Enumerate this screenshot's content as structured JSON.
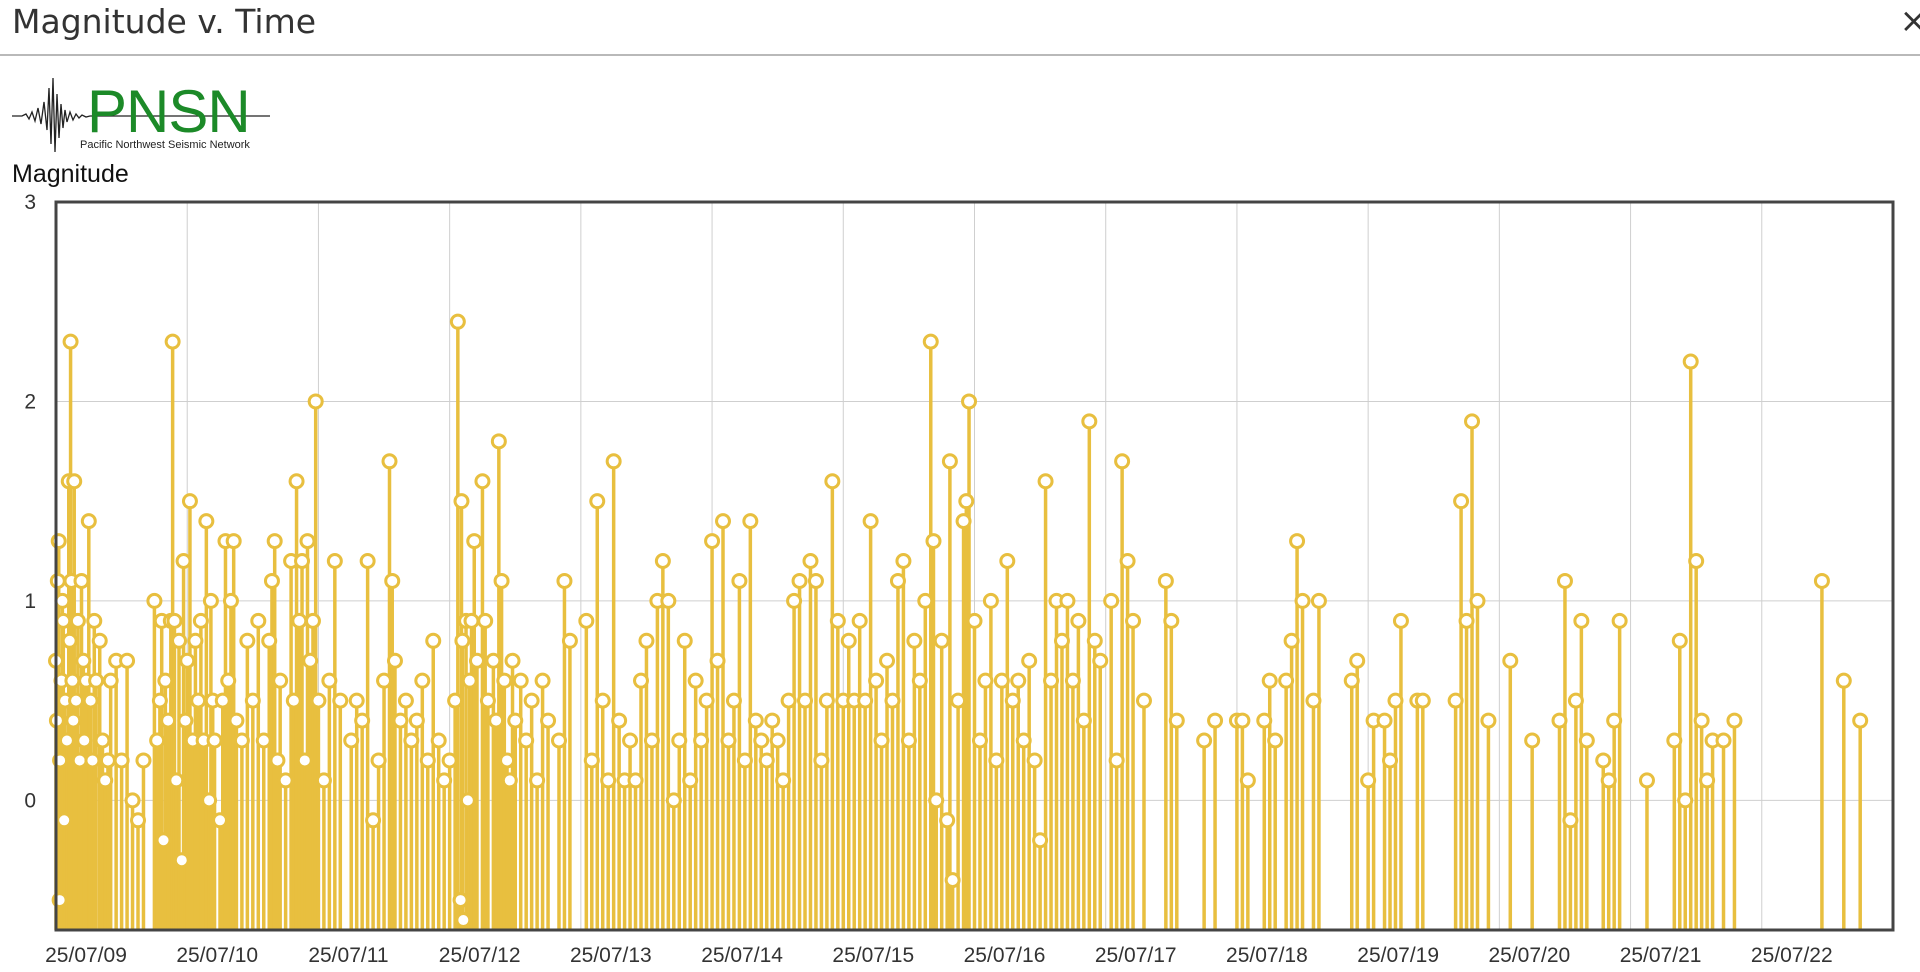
{
  "window": {
    "title": "Magnitude v. Time",
    "close_glyph": "×"
  },
  "logo": {
    "wordmark": "PNSN",
    "subtitle": "Pacific Northwest Seismic Network"
  },
  "colors": {
    "accent": "#e8bf3f",
    "marker_fill": "#ffffff",
    "grid": "#cfcfcf",
    "axis": "#444444"
  },
  "chart_data": {
    "type": "scatter",
    "style": "stem",
    "title": "Magnitude v. Time",
    "ylabel": "Magnitude",
    "xlabel": "",
    "ylim": [
      -0.65,
      3
    ],
    "xlim": [
      "25/07/09 00:00",
      "25/07/23 00:00"
    ],
    "yticks": [
      0,
      1,
      2,
      3
    ],
    "xtick_labels": [
      "25/07/09",
      "25/07/10",
      "25/07/11",
      "25/07/12",
      "25/07/13",
      "25/07/14",
      "25/07/15",
      "25/07/16",
      "25/07/17",
      "25/07/18",
      "25/07/19",
      "25/07/20",
      "25/07/21",
      "25/07/22"
    ],
    "grid": true,
    "points": [
      [
        "25/07/09 00:00",
        0.7
      ],
      [
        "25/07/09 00:10",
        0.4
      ],
      [
        "25/07/09 00:20",
        1.1
      ],
      [
        "25/07/09 00:30",
        1.3
      ],
      [
        "25/07/09 00:40",
        -0.5
      ],
      [
        "25/07/09 00:45",
        0.2
      ],
      [
        "25/07/09 01:00",
        0.6
      ],
      [
        "25/07/09 01:10",
        1.0
      ],
      [
        "25/07/09 01:20",
        0.9
      ],
      [
        "25/07/09 01:30",
        -0.1
      ],
      [
        "25/07/09 01:40",
        0.5
      ],
      [
        "25/07/09 02:00",
        0.3
      ],
      [
        "25/07/09 02:20",
        1.6
      ],
      [
        "25/07/09 02:30",
        0.8
      ],
      [
        "25/07/09 02:40",
        2.3
      ],
      [
        "25/07/09 02:50",
        1.1
      ],
      [
        "25/07/09 03:00",
        0.6
      ],
      [
        "25/07/09 03:10",
        0.4
      ],
      [
        "25/07/09 03:20",
        1.6
      ],
      [
        "25/07/09 03:40",
        0.5
      ],
      [
        "25/07/09 04:00",
        0.9
      ],
      [
        "25/07/09 04:20",
        0.2
      ],
      [
        "25/07/09 04:40",
        1.1
      ],
      [
        "25/07/09 05:00",
        0.7
      ],
      [
        "25/07/09 05:10",
        0.3
      ],
      [
        "25/07/09 05:30",
        0.6
      ],
      [
        "25/07/09 06:00",
        1.4
      ],
      [
        "25/07/09 06:20",
        0.5
      ],
      [
        "25/07/09 06:40",
        0.2
      ],
      [
        "25/07/09 07:00",
        0.9
      ],
      [
        "25/07/09 07:20",
        0.6
      ],
      [
        "25/07/09 08:00",
        0.8
      ],
      [
        "25/07/09 08:30",
        0.3
      ],
      [
        "25/07/09 09:00",
        0.1
      ],
      [
        "25/07/09 09:30",
        0.2
      ],
      [
        "25/07/09 10:00",
        0.6
      ],
      [
        "25/07/09 11:00",
        0.7
      ],
      [
        "25/07/09 12:00",
        0.2
      ],
      [
        "25/07/09 13:00",
        0.7
      ],
      [
        "25/07/09 14:00",
        0.0
      ],
      [
        "25/07/09 15:00",
        -0.1
      ],
      [
        "25/07/09 16:00",
        0.2
      ],
      [
        "25/07/09 18:00",
        1.0
      ],
      [
        "25/07/09 18:30",
        0.3
      ],
      [
        "25/07/09 19:00",
        0.5
      ],
      [
        "25/07/09 19:20",
        0.9
      ],
      [
        "25/07/09 19:40",
        -0.2
      ],
      [
        "25/07/09 20:00",
        0.6
      ],
      [
        "25/07/09 20:30",
        0.4
      ],
      [
        "25/07/09 21:00",
        0.9
      ],
      [
        "25/07/09 21:20",
        2.3
      ],
      [
        "25/07/09 21:40",
        0.9
      ],
      [
        "25/07/09 22:00",
        0.1
      ],
      [
        "25/07/09 22:30",
        0.8
      ],
      [
        "25/07/09 23:00",
        -0.3
      ],
      [
        "25/07/09 23:20",
        1.2
      ],
      [
        "25/07/09 23:40",
        0.4
      ],
      [
        "25/07/10 00:00",
        0.7
      ],
      [
        "25/07/10 00:30",
        1.5
      ],
      [
        "25/07/10 01:00",
        0.3
      ],
      [
        "25/07/10 01:30",
        0.8
      ],
      [
        "25/07/10 02:00",
        0.5
      ],
      [
        "25/07/10 02:30",
        0.9
      ],
      [
        "25/07/10 03:00",
        0.3
      ],
      [
        "25/07/10 03:30",
        1.4
      ],
      [
        "25/07/10 04:00",
        0.0
      ],
      [
        "25/07/10 04:20",
        1.0
      ],
      [
        "25/07/10 04:40",
        0.5
      ],
      [
        "25/07/10 05:00",
        0.3
      ],
      [
        "25/07/10 06:00",
        -0.1
      ],
      [
        "25/07/10 06:30",
        0.5
      ],
      [
        "25/07/10 07:00",
        1.3
      ],
      [
        "25/07/10 07:30",
        0.6
      ],
      [
        "25/07/10 08:00",
        1.0
      ],
      [
        "25/07/10 08:30",
        1.3
      ],
      [
        "25/07/10 09:00",
        0.4
      ],
      [
        "25/07/10 10:00",
        0.3
      ],
      [
        "25/07/10 11:00",
        0.8
      ],
      [
        "25/07/10 12:00",
        0.5
      ],
      [
        "25/07/10 13:00",
        0.9
      ],
      [
        "25/07/10 14:00",
        0.3
      ],
      [
        "25/07/10 15:00",
        0.8
      ],
      [
        "25/07/10 15:30",
        1.1
      ],
      [
        "25/07/10 16:00",
        1.3
      ],
      [
        "25/07/10 16:30",
        0.2
      ],
      [
        "25/07/10 17:00",
        0.6
      ],
      [
        "25/07/10 18:00",
        0.1
      ],
      [
        "25/07/10 19:00",
        1.2
      ],
      [
        "25/07/10 19:30",
        0.5
      ],
      [
        "25/07/10 20:00",
        1.6
      ],
      [
        "25/07/10 20:30",
        0.9
      ],
      [
        "25/07/10 21:00",
        1.2
      ],
      [
        "25/07/10 21:30",
        0.2
      ],
      [
        "25/07/10 22:00",
        1.3
      ],
      [
        "25/07/10 22:30",
        0.7
      ],
      [
        "25/07/10 23:00",
        0.9
      ],
      [
        "25/07/10 23:30",
        2.0
      ],
      [
        "25/07/11 00:00",
        0.5
      ],
      [
        "25/07/11 01:00",
        0.1
      ],
      [
        "25/07/11 02:00",
        0.6
      ],
      [
        "25/07/11 03:00",
        1.2
      ],
      [
        "25/07/11 04:00",
        0.5
      ],
      [
        "25/07/11 06:00",
        0.3
      ],
      [
        "25/07/11 07:00",
        0.5
      ],
      [
        "25/07/11 08:00",
        0.4
      ],
      [
        "25/07/11 09:00",
        1.2
      ],
      [
        "25/07/11 10:00",
        -0.1
      ],
      [
        "25/07/11 11:00",
        0.2
      ],
      [
        "25/07/11 12:00",
        0.6
      ],
      [
        "25/07/11 13:00",
        1.7
      ],
      [
        "25/07/11 13:30",
        1.1
      ],
      [
        "25/07/11 14:00",
        0.7
      ],
      [
        "25/07/11 15:00",
        0.4
      ],
      [
        "25/07/11 16:00",
        0.5
      ],
      [
        "25/07/11 17:00",
        0.3
      ],
      [
        "25/07/11 18:00",
        0.4
      ],
      [
        "25/07/11 19:00",
        0.6
      ],
      [
        "25/07/11 20:00",
        0.2
      ],
      [
        "25/07/11 21:00",
        0.8
      ],
      [
        "25/07/11 22:00",
        0.3
      ],
      [
        "25/07/11 23:00",
        0.1
      ],
      [
        "25/07/12 00:00",
        0.2
      ],
      [
        "25/07/12 01:00",
        0.5
      ],
      [
        "25/07/12 01:30",
        2.4
      ],
      [
        "25/07/12 02:00",
        -0.5
      ],
      [
        "25/07/12 02:10",
        1.5
      ],
      [
        "25/07/12 02:20",
        0.8
      ],
      [
        "25/07/12 02:30",
        -0.6
      ],
      [
        "25/07/12 03:00",
        0.9
      ],
      [
        "25/07/12 03:20",
        0.0
      ],
      [
        "25/07/12 03:40",
        0.6
      ],
      [
        "25/07/12 04:00",
        0.9
      ],
      [
        "25/07/12 04:30",
        1.3
      ],
      [
        "25/07/12 05:00",
        0.7
      ],
      [
        "25/07/12 06:00",
        1.6
      ],
      [
        "25/07/12 06:30",
        0.9
      ],
      [
        "25/07/12 07:00",
        0.5
      ],
      [
        "25/07/12 08:00",
        0.7
      ],
      [
        "25/07/12 08:30",
        0.4
      ],
      [
        "25/07/12 09:00",
        1.8
      ],
      [
        "25/07/12 09:30",
        1.1
      ],
      [
        "25/07/12 10:00",
        0.6
      ],
      [
        "25/07/12 10:30",
        0.2
      ],
      [
        "25/07/12 11:00",
        0.1
      ],
      [
        "25/07/12 11:30",
        0.7
      ],
      [
        "25/07/12 12:00",
        0.4
      ],
      [
        "25/07/12 13:00",
        0.6
      ],
      [
        "25/07/12 14:00",
        0.3
      ],
      [
        "25/07/12 15:00",
        0.5
      ],
      [
        "25/07/12 16:00",
        0.1
      ],
      [
        "25/07/12 17:00",
        0.6
      ],
      [
        "25/07/12 18:00",
        0.4
      ],
      [
        "25/07/12 20:00",
        0.3
      ],
      [
        "25/07/12 21:00",
        1.1
      ],
      [
        "25/07/12 22:00",
        0.8
      ],
      [
        "25/07/13 01:00",
        0.9
      ],
      [
        "25/07/13 02:00",
        0.2
      ],
      [
        "25/07/13 03:00",
        1.5
      ],
      [
        "25/07/13 04:00",
        0.5
      ],
      [
        "25/07/13 05:00",
        0.1
      ],
      [
        "25/07/13 06:00",
        1.7
      ],
      [
        "25/07/13 07:00",
        0.4
      ],
      [
        "25/07/13 08:00",
        0.1
      ],
      [
        "25/07/13 09:00",
        0.3
      ],
      [
        "25/07/13 10:00",
        0.1
      ],
      [
        "25/07/13 11:00",
        0.6
      ],
      [
        "25/07/13 12:00",
        0.8
      ],
      [
        "25/07/13 13:00",
        0.3
      ],
      [
        "25/07/13 14:00",
        1.0
      ],
      [
        "25/07/13 15:00",
        1.2
      ],
      [
        "25/07/13 16:00",
        1.0
      ],
      [
        "25/07/13 17:00",
        0.0
      ],
      [
        "25/07/13 18:00",
        0.3
      ],
      [
        "25/07/13 19:00",
        0.8
      ],
      [
        "25/07/13 20:00",
        0.1
      ],
      [
        "25/07/13 21:00",
        0.6
      ],
      [
        "25/07/13 22:00",
        0.3
      ],
      [
        "25/07/13 23:00",
        0.5
      ],
      [
        "25/07/14 00:00",
        1.3
      ],
      [
        "25/07/14 01:00",
        0.7
      ],
      [
        "25/07/14 02:00",
        1.4
      ],
      [
        "25/07/14 03:00",
        0.3
      ],
      [
        "25/07/14 04:00",
        0.5
      ],
      [
        "25/07/14 05:00",
        1.1
      ],
      [
        "25/07/14 06:00",
        0.2
      ],
      [
        "25/07/14 07:00",
        1.4
      ],
      [
        "25/07/14 08:00",
        0.4
      ],
      [
        "25/07/14 09:00",
        0.3
      ],
      [
        "25/07/14 10:00",
        0.2
      ],
      [
        "25/07/14 11:00",
        0.4
      ],
      [
        "25/07/14 12:00",
        0.3
      ],
      [
        "25/07/14 13:00",
        0.1
      ],
      [
        "25/07/14 14:00",
        0.5
      ],
      [
        "25/07/14 15:00",
        1.0
      ],
      [
        "25/07/14 16:00",
        1.1
      ],
      [
        "25/07/14 17:00",
        0.5
      ],
      [
        "25/07/14 18:00",
        1.2
      ],
      [
        "25/07/14 19:00",
        1.1
      ],
      [
        "25/07/14 20:00",
        0.2
      ],
      [
        "25/07/14 21:00",
        0.5
      ],
      [
        "25/07/14 22:00",
        1.6
      ],
      [
        "25/07/14 23:00",
        0.9
      ],
      [
        "25/07/15 00:00",
        0.5
      ],
      [
        "25/07/15 01:00",
        0.8
      ],
      [
        "25/07/15 02:00",
        0.5
      ],
      [
        "25/07/15 03:00",
        0.9
      ],
      [
        "25/07/15 04:00",
        0.5
      ],
      [
        "25/07/15 05:00",
        1.4
      ],
      [
        "25/07/15 06:00",
        0.6
      ],
      [
        "25/07/15 07:00",
        0.3
      ],
      [
        "25/07/15 08:00",
        0.7
      ],
      [
        "25/07/15 09:00",
        0.5
      ],
      [
        "25/07/15 10:00",
        1.1
      ],
      [
        "25/07/15 11:00",
        1.2
      ],
      [
        "25/07/15 12:00",
        0.3
      ],
      [
        "25/07/15 13:00",
        0.8
      ],
      [
        "25/07/15 14:00",
        0.6
      ],
      [
        "25/07/15 15:00",
        1.0
      ],
      [
        "25/07/15 16:00",
        2.3
      ],
      [
        "25/07/15 16:30",
        1.3
      ],
      [
        "25/07/15 17:00",
        0.0
      ],
      [
        "25/07/15 18:00",
        0.8
      ],
      [
        "25/07/15 19:00",
        -0.1
      ],
      [
        "25/07/15 19:30",
        1.7
      ],
      [
        "25/07/15 20:00",
        -0.4
      ],
      [
        "25/07/15 21:00",
        0.5
      ],
      [
        "25/07/15 22:00",
        1.4
      ],
      [
        "25/07/15 22:30",
        1.5
      ],
      [
        "25/07/15 23:00",
        2.0
      ],
      [
        "25/07/16 00:00",
        0.9
      ],
      [
        "25/07/16 01:00",
        0.3
      ],
      [
        "25/07/16 02:00",
        0.6
      ],
      [
        "25/07/16 03:00",
        1.0
      ],
      [
        "25/07/16 04:00",
        0.2
      ],
      [
        "25/07/16 05:00",
        0.6
      ],
      [
        "25/07/16 06:00",
        1.2
      ],
      [
        "25/07/16 07:00",
        0.5
      ],
      [
        "25/07/16 08:00",
        0.6
      ],
      [
        "25/07/16 09:00",
        0.3
      ],
      [
        "25/07/16 10:00",
        0.7
      ],
      [
        "25/07/16 11:00",
        0.2
      ],
      [
        "25/07/16 12:00",
        -0.2
      ],
      [
        "25/07/16 13:00",
        1.6
      ],
      [
        "25/07/16 14:00",
        0.6
      ],
      [
        "25/07/16 15:00",
        1.0
      ],
      [
        "25/07/16 16:00",
        0.8
      ],
      [
        "25/07/16 17:00",
        1.0
      ],
      [
        "25/07/16 18:00",
        0.6
      ],
      [
        "25/07/16 19:00",
        0.9
      ],
      [
        "25/07/16 20:00",
        0.4
      ],
      [
        "25/07/16 21:00",
        1.9
      ],
      [
        "25/07/16 22:00",
        0.8
      ],
      [
        "25/07/16 23:00",
        0.7
      ],
      [
        "25/07/17 01:00",
        1.0
      ],
      [
        "25/07/17 02:00",
        0.2
      ],
      [
        "25/07/17 03:00",
        1.7
      ],
      [
        "25/07/17 04:00",
        1.2
      ],
      [
        "25/07/17 05:00",
        0.9
      ],
      [
        "25/07/17 07:00",
        0.5
      ],
      [
        "25/07/17 11:00",
        1.1
      ],
      [
        "25/07/17 12:00",
        0.9
      ],
      [
        "25/07/17 13:00",
        0.4
      ],
      [
        "25/07/17 18:00",
        0.3
      ],
      [
        "25/07/17 20:00",
        0.4
      ],
      [
        "25/07/18 00:00",
        0.4
      ],
      [
        "25/07/18 01:00",
        0.4
      ],
      [
        "25/07/18 02:00",
        0.1
      ],
      [
        "25/07/18 05:00",
        0.4
      ],
      [
        "25/07/18 06:00",
        0.6
      ],
      [
        "25/07/18 07:00",
        0.3
      ],
      [
        "25/07/18 09:00",
        0.6
      ],
      [
        "25/07/18 10:00",
        0.8
      ],
      [
        "25/07/18 11:00",
        1.3
      ],
      [
        "25/07/18 12:00",
        1.0
      ],
      [
        "25/07/18 14:00",
        0.5
      ],
      [
        "25/07/18 15:00",
        1.0
      ],
      [
        "25/07/18 21:00",
        0.6
      ],
      [
        "25/07/18 22:00",
        0.7
      ],
      [
        "25/07/19 00:00",
        0.1
      ],
      [
        "25/07/19 01:00",
        0.4
      ],
      [
        "25/07/19 03:00",
        0.4
      ],
      [
        "25/07/19 04:00",
        0.2
      ],
      [
        "25/07/19 05:00",
        0.5
      ],
      [
        "25/07/19 06:00",
        0.9
      ],
      [
        "25/07/19 09:00",
        0.5
      ],
      [
        "25/07/19 10:00",
        0.5
      ],
      [
        "25/07/19 16:00",
        0.5
      ],
      [
        "25/07/19 17:00",
        1.5
      ],
      [
        "25/07/19 18:00",
        0.9
      ],
      [
        "25/07/19 19:00",
        1.9
      ],
      [
        "25/07/19 20:00",
        1.0
      ],
      [
        "25/07/19 22:00",
        0.4
      ],
      [
        "25/07/20 02:00",
        0.7
      ],
      [
        "25/07/20 06:00",
        0.3
      ],
      [
        "25/07/20 11:00",
        0.4
      ],
      [
        "25/07/20 12:00",
        1.1
      ],
      [
        "25/07/20 13:00",
        -0.1
      ],
      [
        "25/07/20 14:00",
        0.5
      ],
      [
        "25/07/20 15:00",
        0.9
      ],
      [
        "25/07/20 16:00",
        0.3
      ],
      [
        "25/07/20 19:00",
        0.2
      ],
      [
        "25/07/20 20:00",
        0.1
      ],
      [
        "25/07/20 21:00",
        0.4
      ],
      [
        "25/07/20 22:00",
        0.9
      ],
      [
        "25/07/21 03:00",
        0.1
      ],
      [
        "25/07/21 08:00",
        0.3
      ],
      [
        "25/07/21 09:00",
        0.8
      ],
      [
        "25/07/21 10:00",
        0.0
      ],
      [
        "25/07/21 11:00",
        2.2
      ],
      [
        "25/07/21 12:00",
        1.2
      ],
      [
        "25/07/21 13:00",
        0.4
      ],
      [
        "25/07/21 14:00",
        0.1
      ],
      [
        "25/07/21 15:00",
        0.3
      ],
      [
        "25/07/21 17:00",
        0.3
      ],
      [
        "25/07/21 19:00",
        0.4
      ],
      [
        "25/07/22 11:00",
        1.1
      ],
      [
        "25/07/22 15:00",
        0.6
      ],
      [
        "25/07/22 18:00",
        0.4
      ]
    ]
  }
}
